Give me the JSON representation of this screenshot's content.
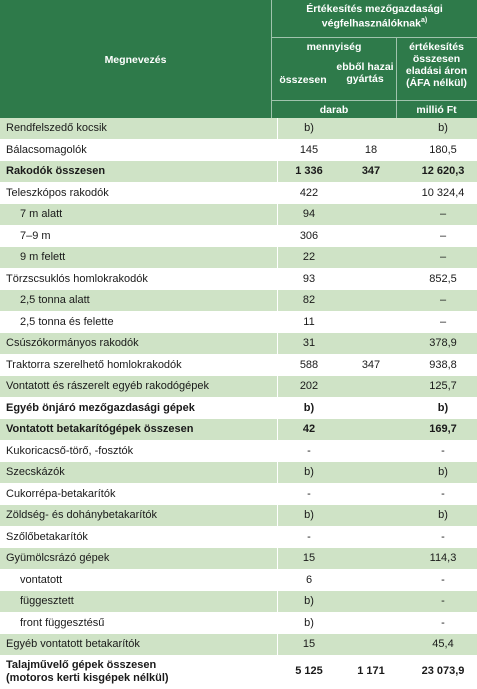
{
  "header": {
    "col_name": "Megnevezés",
    "group_title_line1": "Értékesítés mezőgazdasági",
    "group_title_line2": "végfelhasználóknak",
    "group_footnote": "a)",
    "quantity": "mennyiség",
    "total": "összesen",
    "domestic_line1": "ebből hazai",
    "domestic_line2": "gyártás",
    "sales_line1": "értékesítés",
    "sales_line2": "összesen",
    "sales_line3": "eladási áron",
    "sales_line4": "(ÁFA nélkül)",
    "unit_pieces": "darab",
    "unit_money": "millió Ft"
  },
  "rows": [
    {
      "name": "Rendfelszedő kocsik",
      "total": "b)",
      "domestic": "",
      "sales": "b)"
    },
    {
      "name": "Bálacsomagolók",
      "total": "145",
      "domestic": "18",
      "sales": "180,5"
    },
    {
      "name": "Rakodók összesen",
      "total": "1 336",
      "domestic": "347",
      "sales": "12 620,3"
    },
    {
      "name": "Teleszkópos rakodók",
      "total": "422",
      "domestic": "",
      "sales": "10 324,4"
    },
    {
      "name": "7 m alatt",
      "total": "94",
      "domestic": "",
      "sales": "–"
    },
    {
      "name": "7–9 m",
      "total": "306",
      "domestic": "",
      "sales": "–"
    },
    {
      "name": "9 m felett",
      "total": "22",
      "domestic": "",
      "sales": "–"
    },
    {
      "name": "Törzscsuklós homlokrakodók",
      "total": "93",
      "domestic": "",
      "sales": "852,5"
    },
    {
      "name": "2,5 tonna alatt",
      "total": "82",
      "domestic": "",
      "sales": "–"
    },
    {
      "name": "2,5 tonna és felette",
      "total": "11",
      "domestic": "",
      "sales": "–"
    },
    {
      "name": "Csúszókormányos rakodók",
      "total": "31",
      "domestic": "",
      "sales": "378,9"
    },
    {
      "name": "Traktorra szerelhető homlokrakodók",
      "total": "588",
      "domestic": "347",
      "sales": "938,8"
    },
    {
      "name": "Vontatott és rászerelt egyéb rakodógépek",
      "total": "202",
      "domestic": "",
      "sales": "125,7"
    },
    {
      "name": "Egyéb önjáró mezőgazdasági gépek",
      "total": "b)",
      "domestic": "",
      "sales": "b)"
    },
    {
      "name": "Vontatott betakarítógépek összesen",
      "total": "42",
      "domestic": "",
      "sales": "169,7"
    },
    {
      "name": "Kukoricacső-törő, -fosztók",
      "total": "-",
      "domestic": "",
      "sales": "-"
    },
    {
      "name": "Szecskázók",
      "total": "b)",
      "domestic": "",
      "sales": "b)"
    },
    {
      "name": "Cukorrépa-betakarítók",
      "total": "-",
      "domestic": "",
      "sales": "-"
    },
    {
      "name": "Zöldség- és dohánybetakarítók",
      "total": "b)",
      "domestic": "",
      "sales": "b)"
    },
    {
      "name": "Szőlőbetakarítók",
      "total": "-",
      "domestic": "",
      "sales": "-"
    },
    {
      "name": "Gyümölcsrázó gépek",
      "total": "15",
      "domestic": "",
      "sales": "114,3"
    },
    {
      "name": "vontatott",
      "total": "6",
      "domestic": "",
      "sales": "-"
    },
    {
      "name": "függesztett",
      "total": "b)",
      "domestic": "",
      "sales": "-"
    },
    {
      "name": "front függesztésű",
      "total": "b)",
      "domestic": "",
      "sales": "-"
    },
    {
      "name": "Egyéb vontatott betakarítók",
      "total": "15",
      "domestic": "",
      "sales": "45,4"
    },
    {
      "name_line1": "Talajművelő gépek összesen",
      "name_line2": "(motoros kerti kisgépek nélkül)",
      "total": "5 125",
      "domestic": "1 171",
      "sales": "23 073,9"
    }
  ]
}
